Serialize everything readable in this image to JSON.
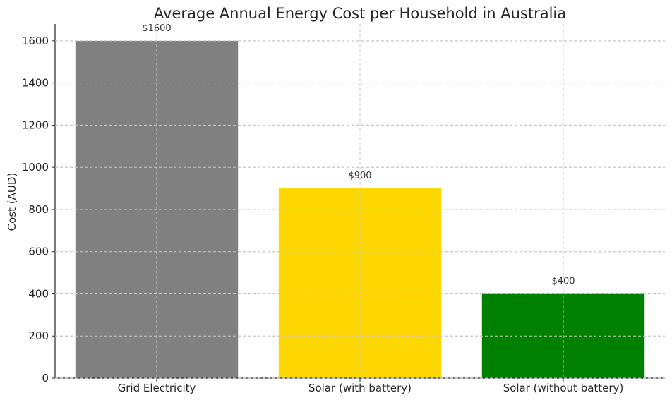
{
  "chart_data": {
    "type": "bar",
    "title": "Average Annual Energy Cost per Household in Australia",
    "xlabel": "",
    "ylabel": "Cost (AUD)",
    "categories": [
      "Grid Electricity",
      "Solar (with battery)",
      "Solar (without battery)"
    ],
    "values": [
      1600,
      900,
      400
    ],
    "data_labels": [
      "$1600",
      "$900",
      "$400"
    ],
    "colors": [
      "#808080",
      "#ffd700",
      "#008000"
    ],
    "ylim": [
      0,
      1680
    ],
    "yticks": [
      0,
      200,
      400,
      600,
      800,
      1000,
      1200,
      1400,
      1600
    ],
    "grid": true
  }
}
